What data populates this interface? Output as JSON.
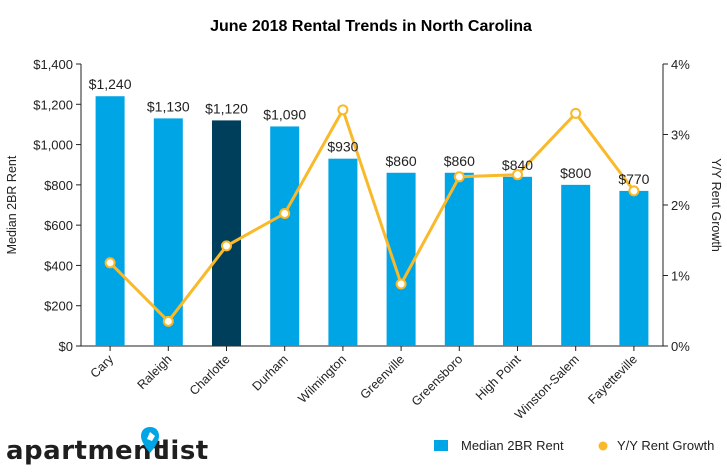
{
  "chart_data": {
    "type": "bar",
    "title": "June 2018 Rental Trends in North Carolina",
    "categories": [
      "Cary",
      "Raleigh",
      "Charlotte",
      "Durham",
      "Wilmington",
      "Greenville",
      "Greensboro",
      "High Point",
      "Winston-Salem",
      "Fayetteville"
    ],
    "series": [
      {
        "name": "Median 2BR Rent",
        "type": "bar",
        "axis": "left",
        "values": [
          1240,
          1130,
          1120,
          1090,
          930,
          860,
          860,
          840,
          800,
          770
        ],
        "labels": [
          "$1,240",
          "$1,130",
          "$1,120",
          "$1,090",
          "$930",
          "$860",
          "$860",
          "$840",
          "$800",
          "$770"
        ],
        "color": "#00a5e6",
        "highlight_index": 2,
        "highlight_color": "#003f5c"
      },
      {
        "name": "Y/Y Rent Growth",
        "type": "line",
        "axis": "right",
        "values": [
          1.18,
          0.35,
          1.42,
          1.88,
          3.35,
          0.88,
          2.4,
          2.43,
          3.3,
          2.2
        ],
        "color": "#f9b928"
      }
    ],
    "ylabel": "Median 2BR Rent",
    "y2label": "Y/Y Rent Growth",
    "ylim": [
      0,
      1400
    ],
    "y2lim": [
      0,
      4
    ],
    "yticks": [
      "$0",
      "$200",
      "$400",
      "$600",
      "$800",
      "$1,000",
      "$1,200",
      "$1,400"
    ],
    "y2ticks": [
      "0%",
      "1%",
      "2%",
      "3%",
      "4%"
    ],
    "grid": false,
    "legend_position": "bottom-right"
  },
  "brand": {
    "left": "apartment",
    "right": "list"
  }
}
